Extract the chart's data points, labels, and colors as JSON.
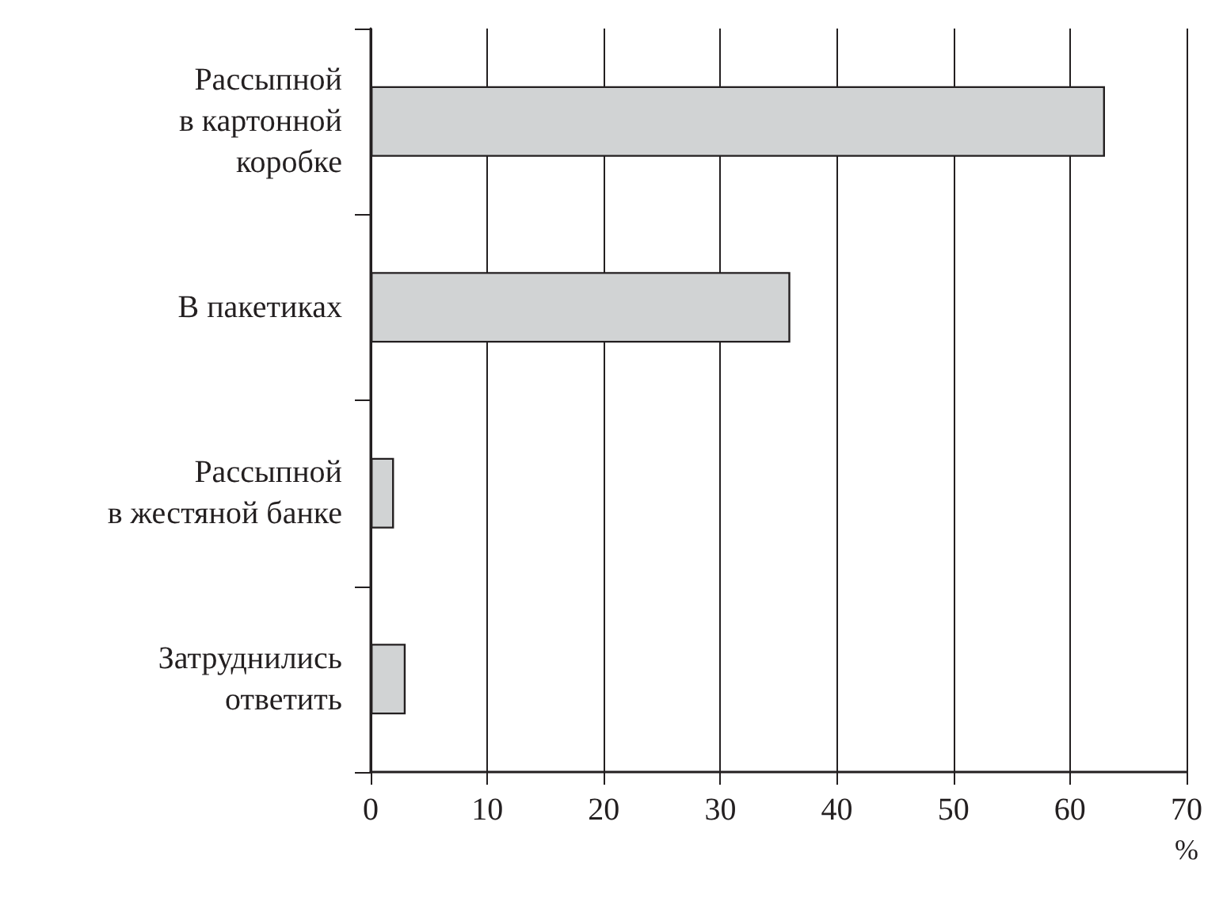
{
  "chart_data": {
    "type": "bar",
    "orientation": "horizontal",
    "categories": [
      "Рассыпной\nв картонной\nкоробке",
      "В пакетиках",
      "Рассыпной\nв жестяной банке",
      "Затруднились\nответить"
    ],
    "values": [
      63,
      36,
      2,
      3
    ],
    "color": "#d1d3d4",
    "xlim": [
      0,
      70
    ],
    "xticks": [
      0,
      10,
      20,
      30,
      40,
      50,
      60,
      70
    ],
    "xlabel": "%",
    "grid": "x"
  }
}
